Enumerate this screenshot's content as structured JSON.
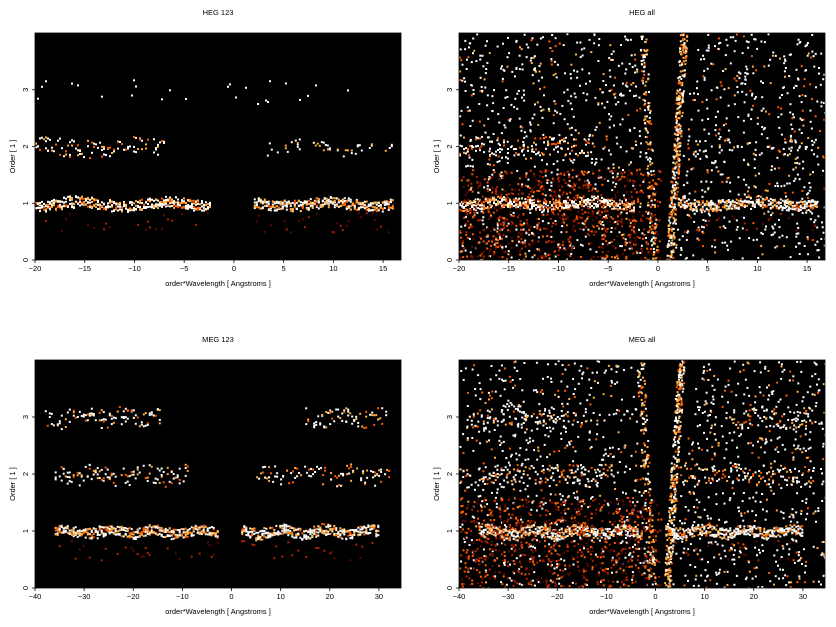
{
  "chart_data": [
    {
      "type": "heatmap",
      "title": "HEG 123",
      "xlabel": "order*Wavelength [ Angstroms ]",
      "ylabel": "Order [ 1 ]",
      "xlim": [
        -20,
        16.8
      ],
      "ylim": [
        0,
        4
      ],
      "xticks": [
        -20,
        -15,
        -10,
        -5,
        0,
        5,
        10,
        15
      ],
      "yticks": [
        0,
        1,
        2,
        3
      ],
      "grid": false,
      "colormap": [
        "#000000",
        "#5a0a00",
        "#b22200",
        "#ff5a00",
        "#ffb040",
        "#ffffff"
      ],
      "bands": [
        {
          "order": 1,
          "x": [
            -20,
            -2.5
          ],
          "level": "bright"
        },
        {
          "order": 1,
          "x": [
            2,
            16
          ],
          "level": "bright"
        },
        {
          "order": 2,
          "x": [
            -20,
            -7
          ],
          "level": "medium"
        },
        {
          "order": 2,
          "x": [
            2.5,
            16
          ],
          "level": "faint"
        },
        {
          "order": 3,
          "x": [
            -20,
            16
          ],
          "level": "sparse"
        }
      ],
      "background": "none"
    },
    {
      "type": "heatmap",
      "title": "HEG all",
      "xlabel": "order*Wavelength [ Angstroms ]",
      "ylabel": "Order [ 1 ]",
      "xlim": [
        -20,
        16.8
      ],
      "ylim": [
        0,
        4
      ],
      "xticks": [
        -20,
        -15,
        -10,
        -5,
        0,
        5,
        10,
        15
      ],
      "yticks": [
        0,
        1,
        2,
        3
      ],
      "grid": false,
      "colormap": [
        "#000000",
        "#5a0a00",
        "#b22200",
        "#ff5a00",
        "#ffb040",
        "#ffffff"
      ],
      "bands": [
        {
          "order": 1,
          "x": [
            -20,
            -2.5
          ],
          "level": "bright"
        },
        {
          "order": 1,
          "x": [
            2,
            16
          ],
          "level": "bright"
        },
        {
          "order": 2,
          "x": [
            -20,
            -7
          ],
          "level": "medium"
        },
        {
          "order": 2,
          "x": [
            2.5,
            16
          ],
          "level": "faint"
        },
        {
          "order": 3,
          "x": [
            -20,
            16
          ],
          "level": "sparse"
        }
      ],
      "background": "wedge"
    },
    {
      "type": "heatmap",
      "title": "MEG 123",
      "xlabel": "order*Wavelength [ Angstroms ]",
      "ylabel": "Order [ 1 ]",
      "xlim": [
        -40,
        34.5
      ],
      "ylim": [
        0,
        4
      ],
      "xticks": [
        -40,
        -30,
        -20,
        -10,
        0,
        10,
        20,
        30
      ],
      "yticks": [
        0,
        1,
        2,
        3
      ],
      "grid": false,
      "colormap": [
        "#000000",
        "#5a0a00",
        "#b22200",
        "#ff5a00",
        "#ffb040",
        "#ffffff"
      ],
      "bands": [
        {
          "order": 1,
          "x": [
            -36,
            -3
          ],
          "level": "bright"
        },
        {
          "order": 1,
          "x": [
            2,
            30
          ],
          "level": "bright"
        },
        {
          "order": 2,
          "x": [
            -36,
            -9
          ],
          "level": "medium"
        },
        {
          "order": 2,
          "x": [
            5,
            32
          ],
          "level": "medium"
        },
        {
          "order": 3,
          "x": [
            -38,
            -14
          ],
          "level": "medium"
        },
        {
          "order": 3,
          "x": [
            15,
            32
          ],
          "level": "medium"
        }
      ],
      "background": "none"
    },
    {
      "type": "heatmap",
      "title": "MEG all",
      "xlabel": "order*Wavelength [ Angstroms ]",
      "ylabel": "Order [ 1 ]",
      "xlim": [
        -40,
        34.5
      ],
      "ylim": [
        0,
        4
      ],
      "xticks": [
        -40,
        -30,
        -20,
        -10,
        0,
        10,
        20,
        30
      ],
      "yticks": [
        0,
        1,
        2,
        3
      ],
      "grid": false,
      "colormap": [
        "#000000",
        "#5a0a00",
        "#b22200",
        "#ff5a00",
        "#ffb040",
        "#ffffff"
      ],
      "bands": [
        {
          "order": 1,
          "x": [
            -36,
            -3
          ],
          "level": "bright"
        },
        {
          "order": 1,
          "x": [
            2,
            30
          ],
          "level": "bright"
        },
        {
          "order": 2,
          "x": [
            -36,
            -9
          ],
          "level": "medium"
        },
        {
          "order": 2,
          "x": [
            5,
            32
          ],
          "level": "medium"
        },
        {
          "order": 3,
          "x": [
            -38,
            -14
          ],
          "level": "medium"
        },
        {
          "order": 3,
          "x": [
            15,
            32
          ],
          "level": "medium"
        }
      ],
      "background": "wedge"
    }
  ]
}
